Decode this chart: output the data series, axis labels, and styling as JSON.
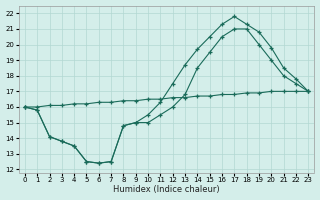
{
  "xlabel": "Humidex (Indice chaleur)",
  "bg_color": "#d4eeea",
  "grid_color": "#b2d8d2",
  "line_color": "#1a6b5a",
  "xlim": [
    -0.5,
    23.5
  ],
  "ylim": [
    11.8,
    22.5
  ],
  "xticks": [
    0,
    1,
    2,
    3,
    4,
    5,
    6,
    7,
    8,
    9,
    10,
    11,
    12,
    13,
    14,
    15,
    16,
    17,
    18,
    19,
    20,
    21,
    22,
    23
  ],
  "yticks": [
    12,
    13,
    14,
    15,
    16,
    17,
    18,
    19,
    20,
    21,
    22
  ],
  "curve1": {
    "x": [
      0,
      1,
      2,
      3,
      4,
      5,
      6,
      7,
      8,
      9,
      10,
      11,
      12,
      13,
      14,
      15,
      16,
      17,
      18,
      19,
      20,
      21,
      22,
      23
    ],
    "y": [
      16.0,
      16.0,
      16.1,
      16.1,
      16.2,
      16.2,
      16.3,
      16.3,
      16.4,
      16.4,
      16.5,
      16.5,
      16.6,
      16.6,
      16.7,
      16.7,
      16.8,
      16.8,
      16.9,
      16.9,
      17.0,
      17.0,
      17.0,
      17.0
    ]
  },
  "curve2": {
    "x": [
      0,
      1,
      2,
      3,
      4,
      5,
      6,
      7,
      8,
      9,
      10,
      11,
      12,
      13,
      14,
      15,
      16,
      17,
      18,
      19,
      20,
      21,
      22,
      23
    ],
    "y": [
      16.0,
      15.8,
      14.1,
      13.8,
      13.5,
      12.5,
      12.4,
      12.5,
      14.8,
      15.0,
      15.0,
      15.5,
      16.0,
      16.8,
      18.5,
      19.5,
      20.5,
      21.0,
      21.0,
      20.0,
      19.0,
      18.0,
      17.5,
      17.0
    ]
  },
  "curve3": {
    "x": [
      0,
      1,
      2,
      3,
      4,
      5,
      6,
      7,
      8,
      9,
      10,
      11,
      12,
      13,
      14,
      15,
      16,
      17,
      18,
      19,
      20,
      21,
      22,
      23
    ],
    "y": [
      16.0,
      15.8,
      14.1,
      13.8,
      13.5,
      12.5,
      12.4,
      12.5,
      14.8,
      15.0,
      15.5,
      16.3,
      17.5,
      18.7,
      19.7,
      20.5,
      21.3,
      21.8,
      21.3,
      20.8,
      19.8,
      18.5,
      17.8,
      17.0
    ]
  }
}
